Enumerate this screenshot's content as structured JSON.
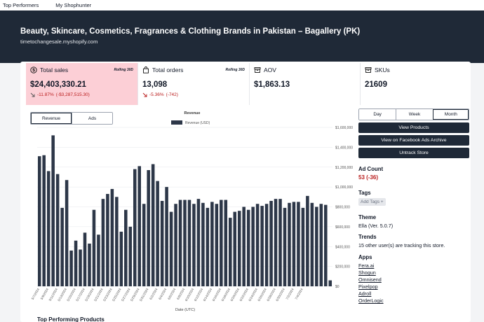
{
  "nav": {
    "items": [
      "Top Performers",
      "My Shophunter"
    ]
  },
  "store": {
    "title": "Beauty, Skincare, Cosmetics, Fragrances & Clothing Brands in Pakistan – Bagallery (PK)",
    "domain": "timetochangesale.myshopify.com"
  },
  "stats": {
    "sales": {
      "label": "Total sales",
      "badge": "Rolling 30D",
      "value": "$24,403,330.21",
      "delta_pct": "-11.87%",
      "delta_abs": "(-$3,287,515.30)"
    },
    "orders": {
      "label": "Total orders",
      "badge": "Rolling 30D",
      "value": "13,098",
      "delta_pct": "-5.36%",
      "delta_abs": "(-742)"
    },
    "aov": {
      "label": "AOV",
      "value": "$1,863.13"
    },
    "skus": {
      "label": "SKUs",
      "value": "21609"
    }
  },
  "chart_tabs": [
    "Revenue",
    "Ads"
  ],
  "period_tabs": [
    "Day",
    "Week",
    "Month"
  ],
  "period_selected": "Month",
  "actions": {
    "view_products": "View Products",
    "view_fb": "View on Facebook Ads Archive",
    "untrack": "Untrack Store"
  },
  "ad_count": {
    "label": "Ad Count",
    "value": "53 (-36)"
  },
  "tags": {
    "label": "Tags",
    "add": "Add Tags +"
  },
  "theme": {
    "label": "Theme",
    "name": "Ella",
    "version": "(Ver. 5.0.7)"
  },
  "trends": {
    "label": "Trends",
    "text": "15 other user(s) are tracking this store."
  },
  "apps": {
    "label": "Apps",
    "items": [
      "Fera.ai",
      "Shogun",
      "Omnisend",
      "Pixelpop",
      "Adroll",
      "OrderLogic"
    ]
  },
  "bottom_title": "Top Performing Products",
  "colors": {
    "bar": "#2d3748",
    "hero": "#1f2937",
    "highlight": "#fccfd6",
    "negative": "#b91c1c"
  },
  "chart_data": {
    "type": "bar",
    "title": "Revenue",
    "legend": "Revenue (USD)",
    "xlabel": "Date (UTC)",
    "ylabel": "",
    "ylim": [
      0,
      1600000
    ],
    "y_ticks": [
      "$0",
      "$200,000",
      "$400,000",
      "$600,000",
      "$800,000",
      "$1,000,000",
      "$1,200,000",
      "$1,400,000",
      "$1,600,000"
    ],
    "x_ticks": [
      "5/7/2024",
      "5/9/2024",
      "5/11/2024",
      "5/13/2024",
      "5/15/2024",
      "5/17/2024",
      "5/19/2024",
      "5/21/2024",
      "5/23/2024",
      "5/25/2024",
      "5/27/2024",
      "5/29/2024",
      "5/31/2024",
      "6/2/2024",
      "6/4/2024",
      "6/6/2024",
      "6/8/2024",
      "6/10/2024",
      "6/12/2024",
      "6/14/2024",
      "6/16/2024",
      "6/18/2024",
      "6/20/2024",
      "6/22/2024",
      "6/24/2024",
      "6/26/2024",
      "6/28/2024",
      "6/30/2024",
      "7/2/2024",
      "7/4/2024"
    ],
    "values": [
      1310000,
      1320000,
      1160000,
      1520000,
      1130000,
      790000,
      1070000,
      360000,
      460000,
      370000,
      540000,
      430000,
      770000,
      520000,
      880000,
      930000,
      980000,
      900000,
      550000,
      770000,
      600000,
      1180000,
      1210000,
      830000,
      1170000,
      1230000,
      1060000,
      860000,
      1000000,
      750000,
      830000,
      870000,
      870000,
      870000,
      830000,
      880000,
      840000,
      790000,
      850000,
      830000,
      870000,
      870000,
      690000,
      750000,
      760000,
      800000,
      770000,
      800000,
      830000,
      810000,
      830000,
      860000,
      880000,
      880000,
      790000,
      840000,
      850000,
      850000,
      790000,
      910000,
      840000,
      800000,
      830000,
      820000,
      60000
    ]
  }
}
